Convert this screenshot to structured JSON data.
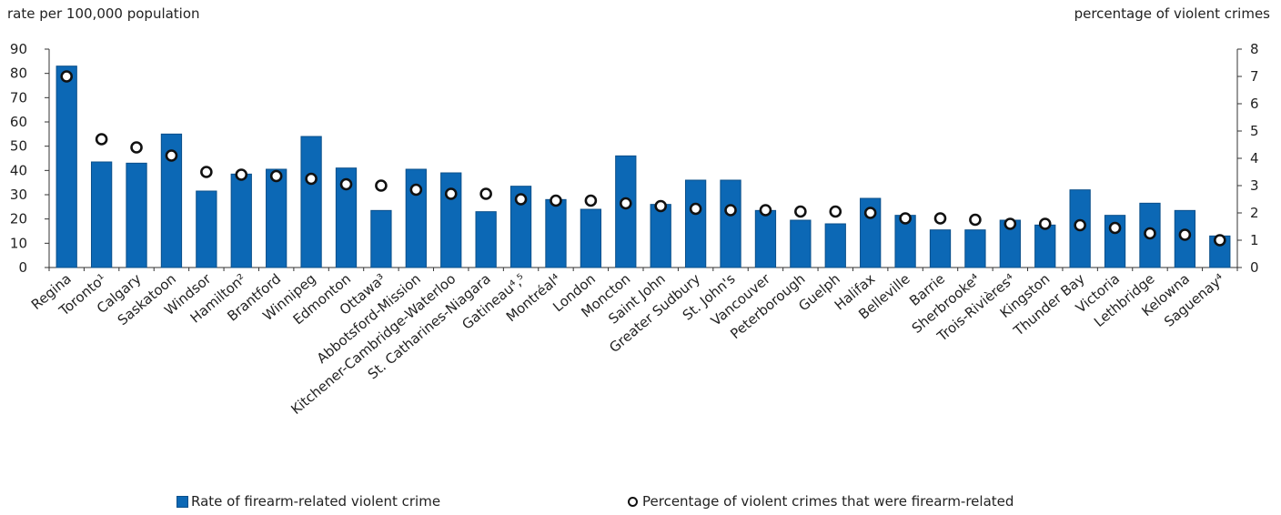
{
  "chart_data": {
    "type": "bar",
    "title": "",
    "ylabel": "rate per 100,000 population",
    "y2label": "percentage of violent crimes",
    "ylim": [
      0,
      90
    ],
    "y2lim": [
      0,
      8
    ],
    "yticks": [
      0,
      10,
      20,
      30,
      40,
      50,
      60,
      70,
      80,
      90
    ],
    "y2ticks": [
      0,
      1,
      2,
      3,
      4,
      5,
      6,
      7,
      8
    ],
    "categories": [
      "Regina",
      "Toronto¹",
      "Calgary",
      "Saskatoon",
      "Windsor",
      "Hamilton²",
      "Brantford",
      "Winnipeg",
      "Edmonton",
      "Ottawa³",
      "Abbotsford-Mission",
      "Kitchener-Cambridge-Waterloo",
      "St. Catharines-Niagara",
      "Gatineau⁴,⁵",
      "Montréal⁴",
      "London",
      "Moncton",
      "Saint John",
      "Greater Sudbury",
      "St. John's",
      "Vancouver",
      "Peterborough",
      "Guelph",
      "Halifax",
      "Belleville",
      "Barrie",
      "Sherbrooke⁴",
      "Trois-Rivières⁴",
      "Kingston",
      "Thunder Bay",
      "Victoria",
      "Lethbridge",
      "Kelowna",
      "Saguenay⁴"
    ],
    "series": [
      {
        "name": "Rate of firearm-related violent crime",
        "type": "bar",
        "axis": "left",
        "color": "#0c68b5",
        "values": [
          83,
          43.5,
          43,
          55,
          31.5,
          38.5,
          40.5,
          54,
          41,
          23.5,
          40.5,
          39,
          23,
          33.5,
          28,
          24,
          46,
          26,
          36,
          36,
          23.5,
          19.5,
          18,
          28.5,
          21.5,
          15.5,
          15.5,
          19.5,
          17.5,
          32,
          21.5,
          26.5,
          23.5,
          13
        ]
      },
      {
        "name": "Percentage of violent crimes that were firearm-related",
        "type": "scatter",
        "axis": "right",
        "color": "#111111",
        "values": [
          7.0,
          4.7,
          4.4,
          4.1,
          3.5,
          3.4,
          3.35,
          3.25,
          3.05,
          3.0,
          2.85,
          2.7,
          2.7,
          2.5,
          2.45,
          2.45,
          2.35,
          2.25,
          2.15,
          2.1,
          2.1,
          2.05,
          2.05,
          2.0,
          1.8,
          1.8,
          1.75,
          1.6,
          1.6,
          1.55,
          1.45,
          1.25,
          1.2,
          1.0
        ]
      }
    ],
    "grid": false,
    "legend": "bottom"
  }
}
